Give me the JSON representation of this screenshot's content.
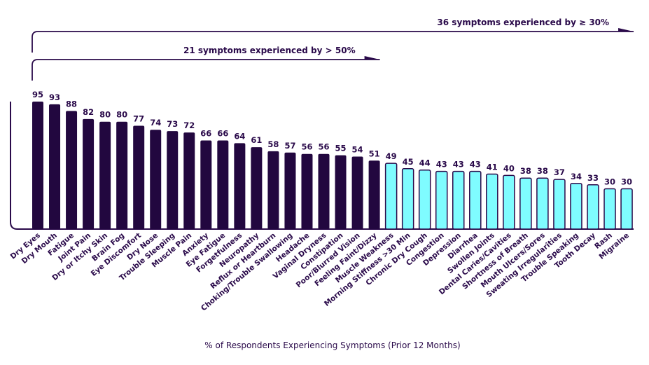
{
  "chart_data": {
    "type": "bar",
    "title": "",
    "xlabel": "% of Respondents Experiencing Symptoms (Prior 12 Months)",
    "ylabel": "",
    "ylim": [
      0,
      100
    ],
    "grid": false,
    "categories": [
      "Dry Eyes",
      "Dry Mouth",
      "Fatigue",
      "Joint Pain",
      "Dry or Itchy Skin",
      "Brain Fog",
      "Eye Discomfort",
      "Dry Nose",
      "Trouble Sleeping",
      "Muscle Pain",
      "Anxiety",
      "Eye Fatigue",
      "Forgetfulness",
      "Neuropathy",
      "Reflux or Heartburn",
      "Choking/Trouble Swallowing",
      "Headache",
      "Vaginal Dryness",
      "Constipation",
      "Poor/Blurred Vision",
      "Feeling Faint/Dizzy",
      "Muscle Weakness",
      "Morning Stiffness >30 Min",
      "Chronic Dry Cough",
      "Congestion",
      "Depression",
      "Diarrhea",
      "Swollen Joints",
      "Dental Caries/Cavities",
      "Shortness of Breath",
      "Mouth Ulcers/Sores",
      "Sweating Irregularities",
      "Trouble Speaking",
      "Tooth Decay",
      "Rash",
      "Migraine"
    ],
    "values": [
      95,
      93,
      88,
      82,
      80,
      80,
      77,
      74,
      73,
      72,
      66,
      66,
      64,
      61,
      58,
      57,
      56,
      56,
      55,
      54,
      51,
      49,
      45,
      44,
      43,
      43,
      43,
      41,
      40,
      38,
      38,
      37,
      34,
      33,
      30,
      30
    ],
    "colors": {
      "above_50": "#22073f",
      "below_50": "#7ffcff",
      "outline": "#2a0a4a"
    },
    "annotations": [
      {
        "text": "36 symptoms experienced by ≥ 30%",
        "span_count": 36
      },
      {
        "text": "21 symptoms experienced by > 50%",
        "span_count": 21
      }
    ]
  }
}
